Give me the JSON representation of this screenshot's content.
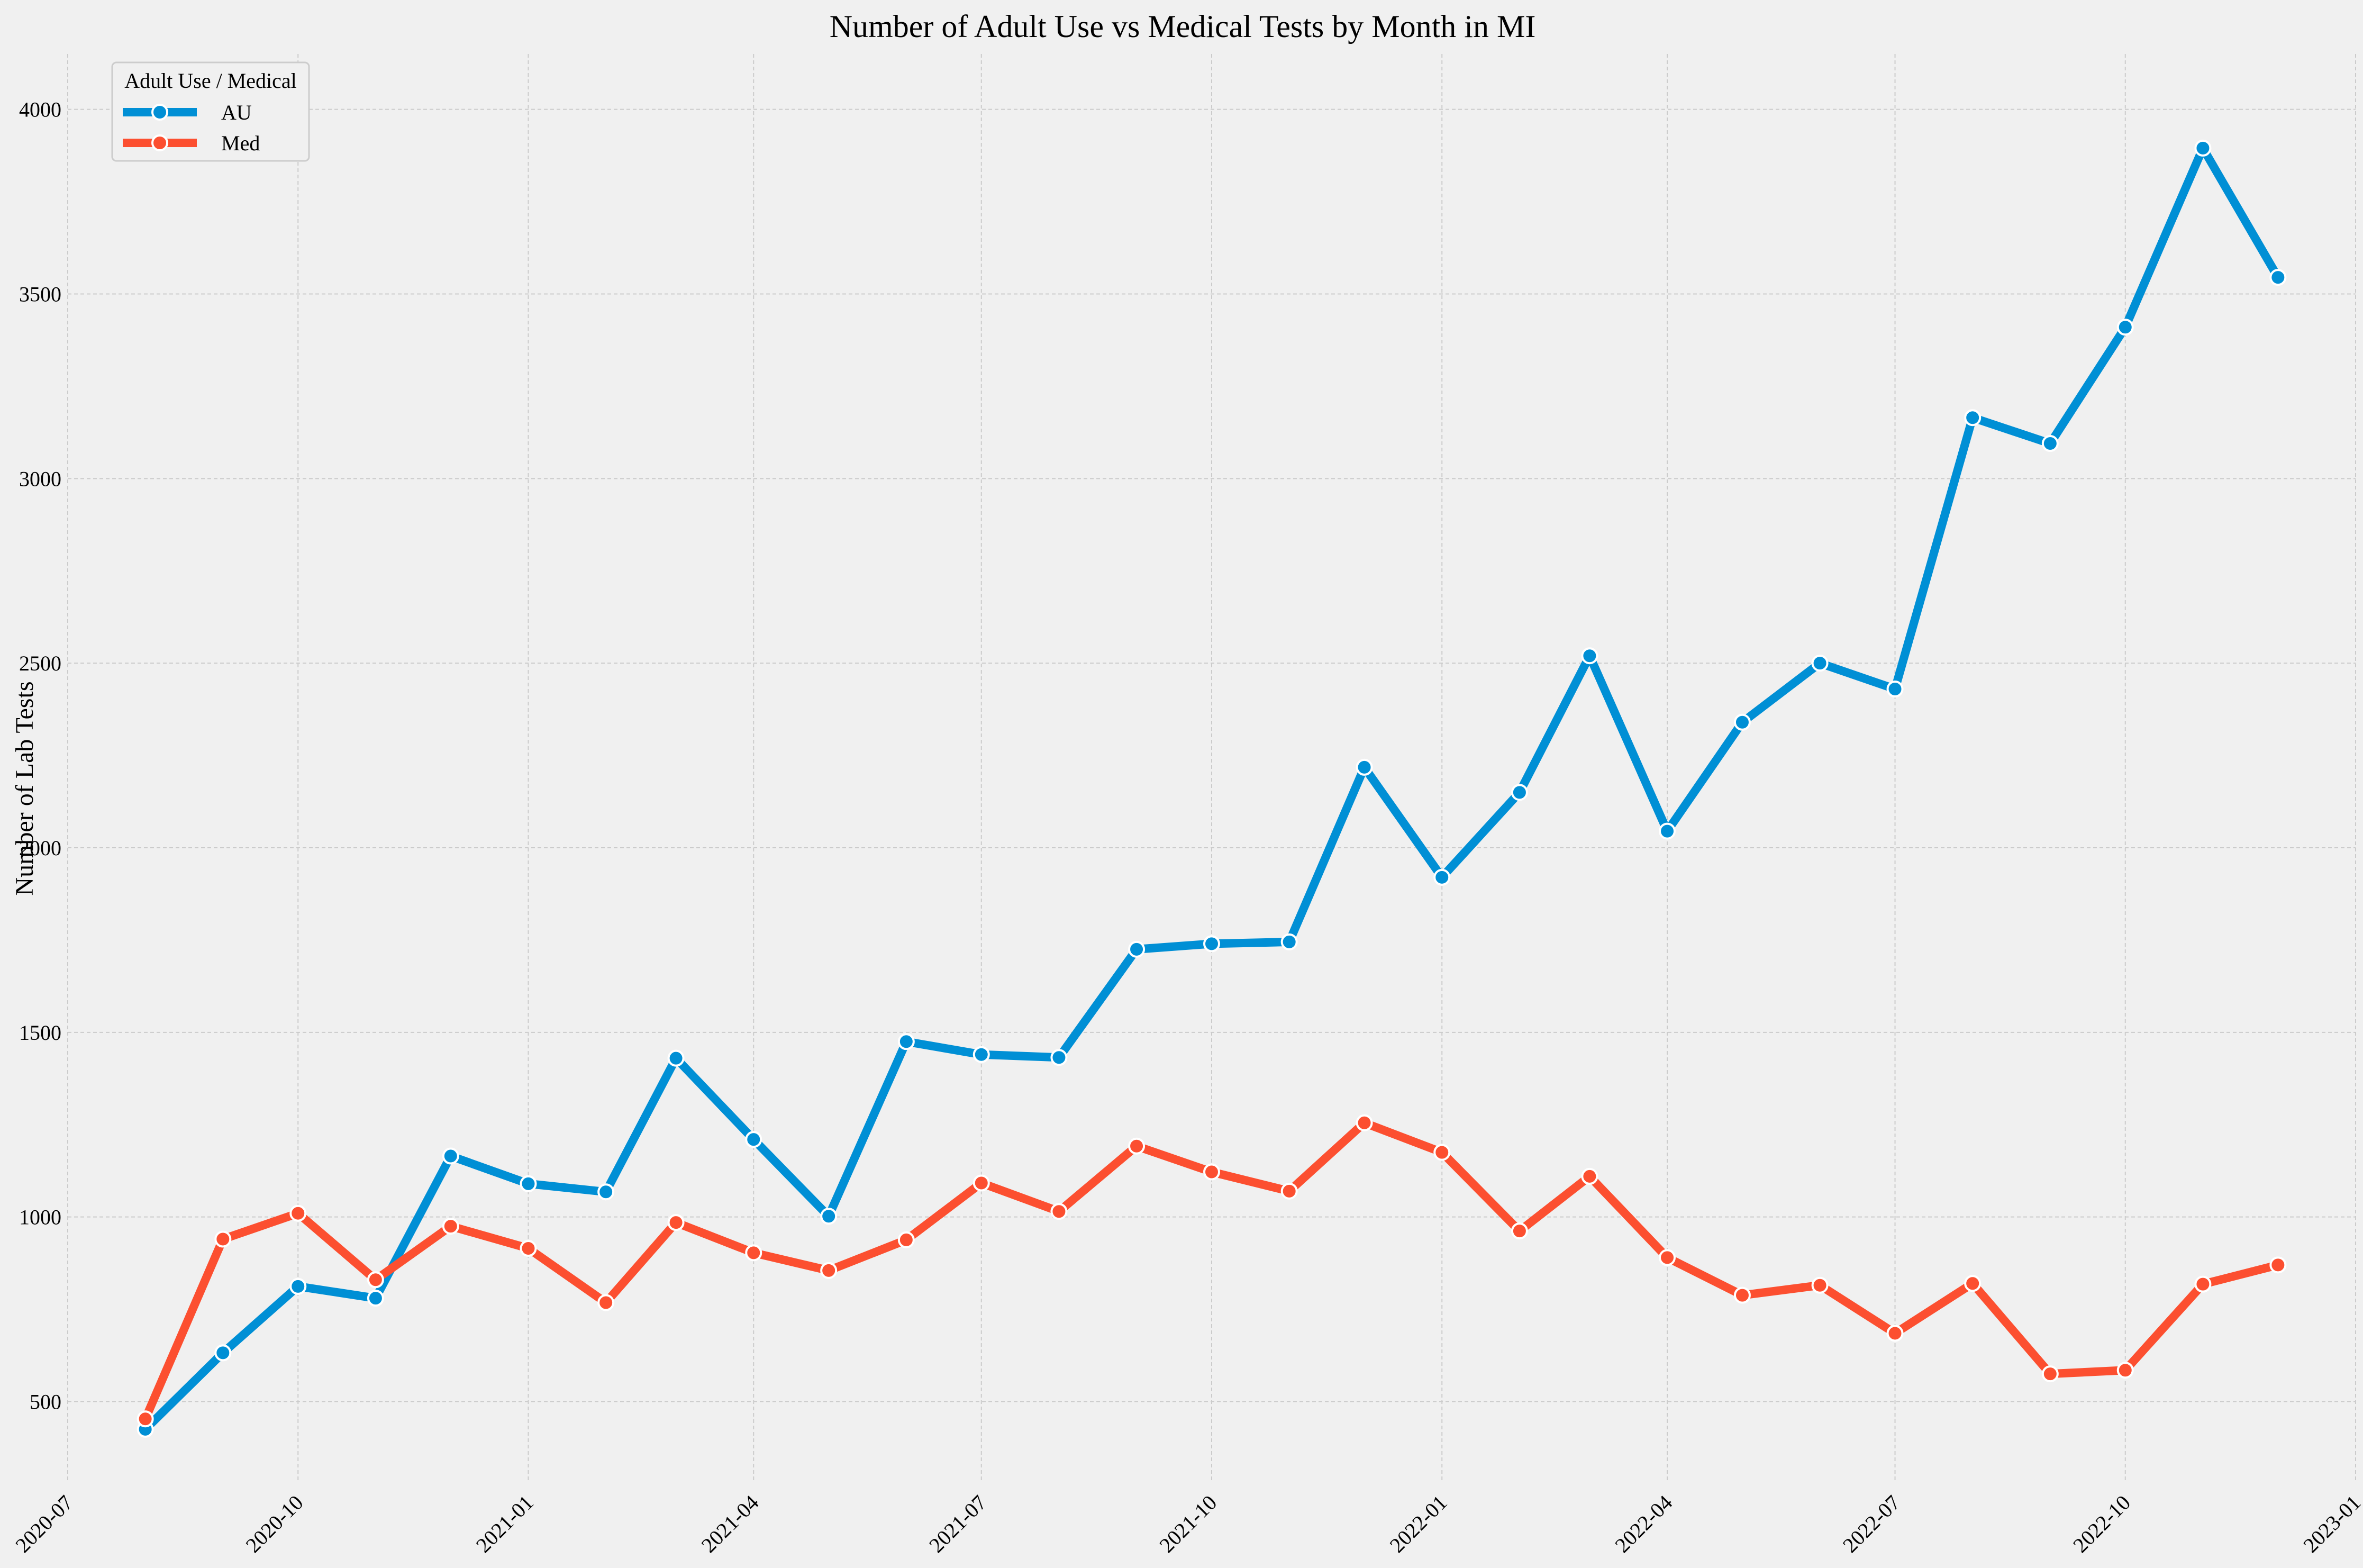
{
  "chart_data": {
    "type": "line",
    "title": "Number of Adult Use vs Medical Tests by Month in MI",
    "xlabel": "",
    "ylabel": "Number of Lab Tests",
    "x_type": "date",
    "x": [
      "2020-08-01",
      "2020-09-01",
      "2020-10-01",
      "2020-11-01",
      "2020-12-01",
      "2021-01-01",
      "2021-02-01",
      "2021-03-01",
      "2021-04-01",
      "2021-05-01",
      "2021-06-01",
      "2021-07-01",
      "2021-08-01",
      "2021-09-01",
      "2021-10-01",
      "2021-11-01",
      "2021-12-01",
      "2022-01-01",
      "2022-02-01",
      "2022-03-01",
      "2022-04-01",
      "2022-05-01",
      "2022-06-01",
      "2022-07-01",
      "2022-08-01",
      "2022-09-01",
      "2022-10-01",
      "2022-11-01",
      "2022-12-01"
    ],
    "xlim": [
      "2020-07-01",
      "2023-01-01"
    ],
    "x_ticks": [
      "2020-07-01",
      "2020-10-01",
      "2021-01-01",
      "2021-04-01",
      "2021-07-01",
      "2021-10-01",
      "2022-01-01",
      "2022-04-01",
      "2022-07-01",
      "2022-10-01",
      "2023-01-01"
    ],
    "x_tick_labels": [
      "2020-07",
      "2020-10",
      "2021-01",
      "2021-04",
      "2021-07",
      "2021-10",
      "2022-01",
      "2022-04",
      "2022-07",
      "2022-10",
      "2023-01"
    ],
    "ylim": [
      280,
      4150
    ],
    "y_ticks": [
      500,
      1000,
      1500,
      2000,
      2500,
      3000,
      3500,
      4000
    ],
    "y_tick_labels": [
      "500",
      "1000",
      "1500",
      "2000",
      "2500",
      "3000",
      "3500",
      "4000"
    ],
    "grid": true,
    "legend": {
      "title": "Adult Use / Medical",
      "placement": "top-left"
    },
    "series": [
      {
        "name": "AU",
        "color": "#008fd5",
        "values": [
          425,
          632,
          812,
          780,
          1165,
          1090,
          1068,
          1430,
          1210,
          1002,
          1475,
          1440,
          1432,
          1725,
          1740,
          1745,
          2218,
          1920,
          2150,
          2520,
          2045,
          2340,
          2500,
          2430,
          3165,
          3095,
          3410,
          3895,
          3545
        ]
      },
      {
        "name": "Med",
        "color": "#fc4f30",
        "values": [
          453,
          940,
          1010,
          830,
          975,
          915,
          768,
          985,
          903,
          855,
          938,
          1092,
          1015,
          1192,
          1122,
          1070,
          1255,
          1175,
          962,
          1110,
          890,
          788,
          815,
          685,
          820,
          575,
          585,
          818,
          870
        ]
      }
    ]
  }
}
